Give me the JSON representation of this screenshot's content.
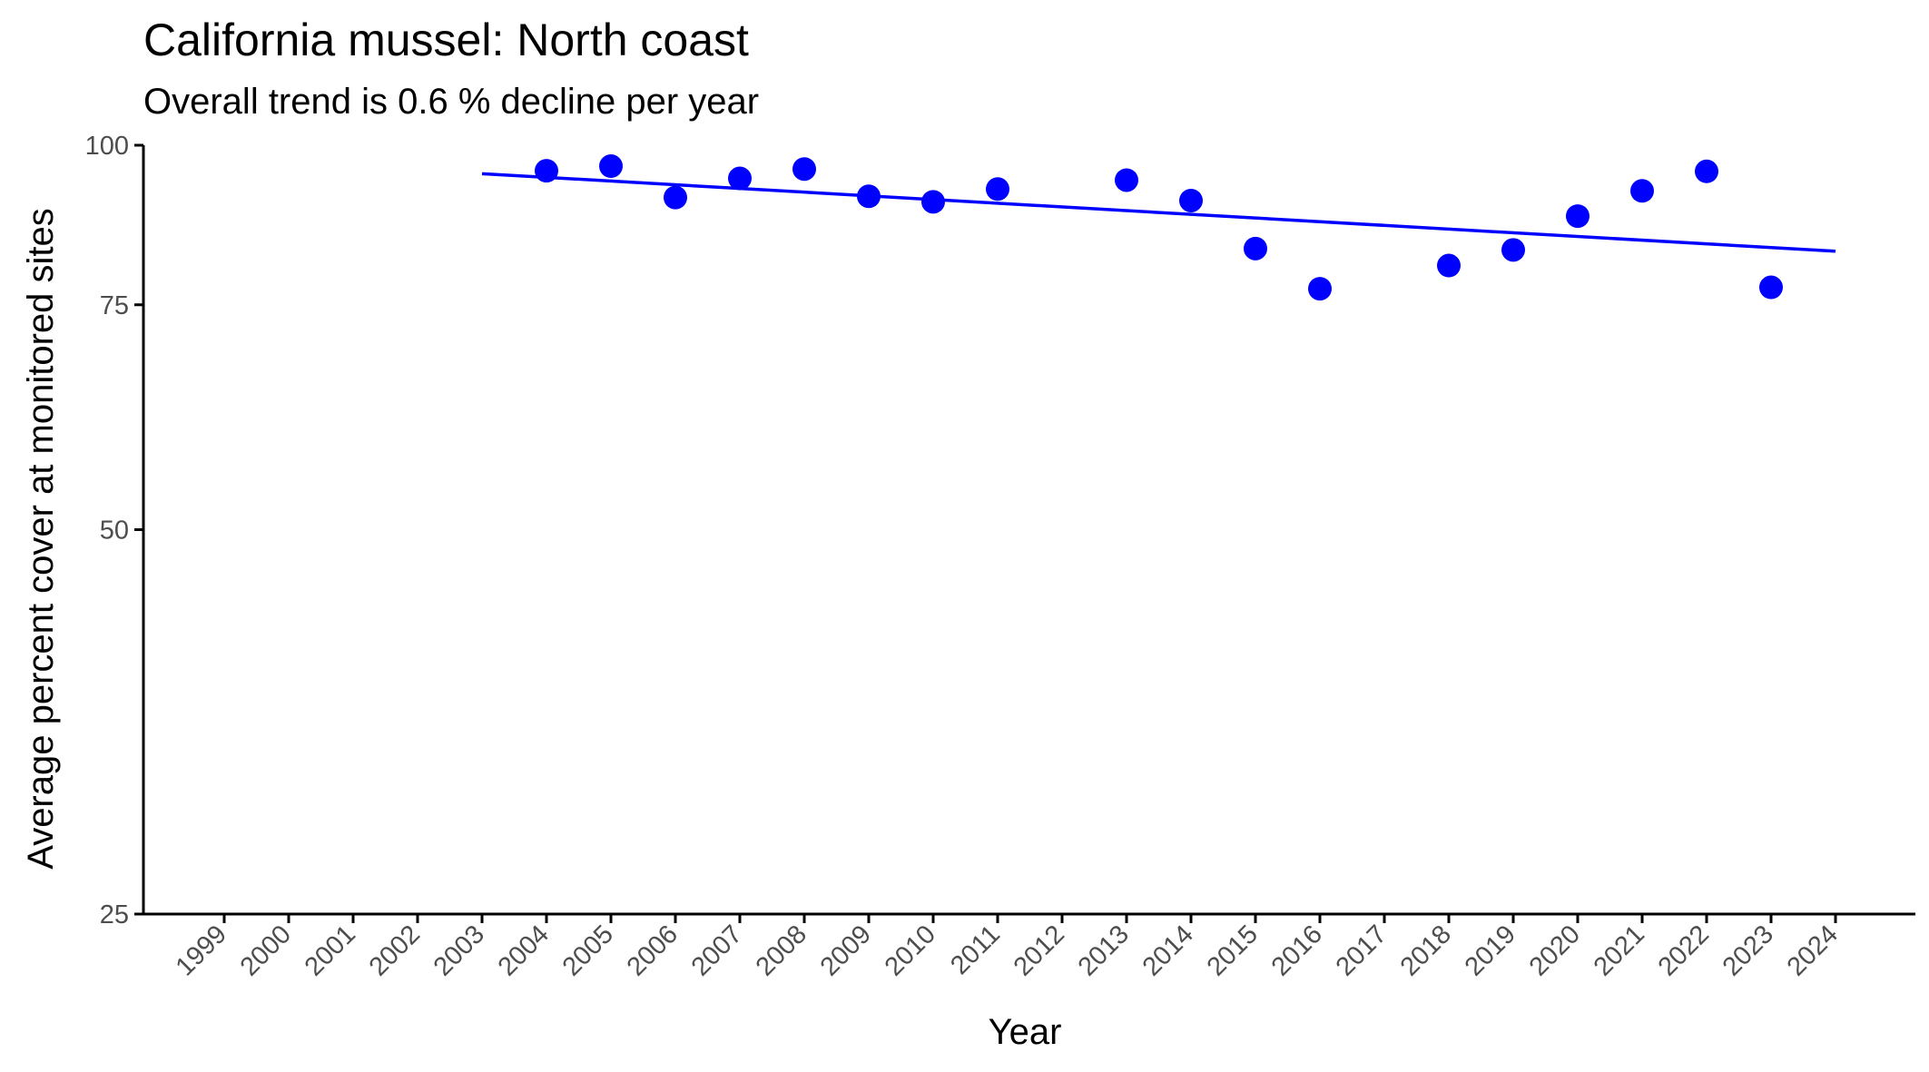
{
  "chart_data": {
    "type": "scatter",
    "title": "California mussel: North coast",
    "subtitle": "Overall trend is 0.6 % decline per year",
    "xlabel": "Year",
    "ylabel": "Average percent cover at monitored sites",
    "y_scale": "log",
    "ylim": [
      25,
      100
    ],
    "y_ticks": [
      25,
      50,
      75,
      100
    ],
    "x_ticks": [
      1999,
      2000,
      2001,
      2002,
      2003,
      2004,
      2005,
      2006,
      2007,
      2008,
      2009,
      2010,
      2011,
      2012,
      2013,
      2014,
      2015,
      2016,
      2017,
      2018,
      2019,
      2020,
      2021,
      2022,
      2023,
      2024
    ],
    "grid": false,
    "point_color": "#0000ff",
    "trend_color": "#0000ff",
    "series": [
      {
        "x": [
          2004,
          2005,
          2006,
          2007,
          2008,
          2009,
          2010,
          2011,
          2013,
          2014,
          2015,
          2016,
          2018,
          2019,
          2020,
          2021,
          2022,
          2023
        ],
        "y": [
          95.5,
          96.3,
          91.0,
          94.2,
          95.8,
          91.2,
          90.3,
          92.4,
          93.9,
          90.5,
          83.0,
          77.2,
          80.5,
          82.8,
          88.0,
          92.1,
          95.4,
          77.4
        ]
      }
    ],
    "trend": {
      "x": [
        2003,
        2024
      ],
      "y": [
        95.0,
        82.6
      ]
    }
  }
}
